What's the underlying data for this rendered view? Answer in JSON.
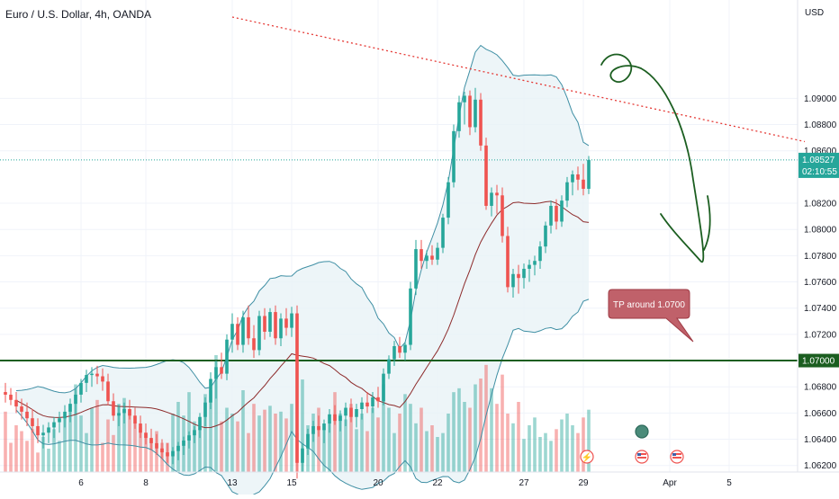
{
  "header": {
    "symbol_title": "Euro / U.S. Dollar, 4h, OANDA"
  },
  "price_axis": {
    "currency": "USD",
    "ticks": [
      "1.09000",
      "1.08800",
      "1.08600",
      "1.08200",
      "1.08000",
      "1.07800",
      "1.07600",
      "1.07400",
      "1.07200",
      "1.06800",
      "1.06600",
      "1.06400",
      "1.06200"
    ],
    "tick_values": [
      1.09,
      1.088,
      1.086,
      1.082,
      1.08,
      1.078,
      1.076,
      1.074,
      1.072,
      1.068,
      1.066,
      1.064,
      1.062
    ],
    "last_price_tag": {
      "price": "1.08527",
      "countdown": "02:10:55"
    },
    "tp_tag": "1.07000"
  },
  "time_axis": {
    "ticks": [
      {
        "label": "6",
        "bar": 14
      },
      {
        "label": "8",
        "bar": 26
      },
      {
        "label": "13",
        "bar": 42
      },
      {
        "label": "15",
        "bar": 53
      },
      {
        "label": "20",
        "bar": 69
      },
      {
        "label": "22",
        "bar": 80
      },
      {
        "label": "27",
        "bar": 96
      },
      {
        "label": "29",
        "bar": 107
      },
      {
        "label": "Apr",
        "bar": 123
      },
      {
        "label": "5",
        "bar": 134
      }
    ]
  },
  "annotations": {
    "tp_callout": "TP around 1.0700",
    "tp_level": 1.07,
    "resistance_line": {
      "from": {
        "bar": 42,
        "price": 1.0962
      },
      "to": {
        "bar": 148,
        "price": 1.0867
      }
    },
    "event_icons": [
      "flash-event-icon",
      "us-flag-icon",
      "world-event-icon",
      "us-flag-icon",
      "us-flag-icon"
    ]
  },
  "colors": {
    "up": "#26a69a",
    "down": "#ef5350",
    "hline": "#1b5e20",
    "bands": "#3f8fa4",
    "basis": "#8d2b2b",
    "resistance": "#e53935",
    "drawing": "#1b5e20",
    "callout": "#c0616a"
  },
  "chart_data": {
    "type": "candlestick",
    "title": "Euro / U.S. Dollar, 4h, OANDA",
    "y_unit": "USD",
    "ylim": [
      1.0615,
      1.0975
    ],
    "grid": true,
    "candles": [
      [
        1.0676,
        1.0683,
        1.0668,
        1.0674
      ],
      [
        1.0674,
        1.0679,
        1.0666,
        1.067
      ],
      [
        1.067,
        1.0676,
        1.066,
        1.0665
      ],
      [
        1.0665,
        1.0671,
        1.0655,
        1.0661
      ],
      [
        1.0661,
        1.0668,
        1.065,
        1.0656
      ],
      [
        1.0656,
        1.0663,
        1.0645,
        1.065
      ],
      [
        1.065,
        1.0656,
        1.0637,
        1.0643
      ],
      [
        1.0643,
        1.0651,
        1.0633,
        1.0645
      ],
      [
        1.0645,
        1.0653,
        1.0637,
        1.0649
      ],
      [
        1.0649,
        1.0657,
        1.0641,
        1.0653
      ],
      [
        1.0653,
        1.0661,
        1.0645,
        1.0656
      ],
      [
        1.0656,
        1.0666,
        1.0649,
        1.0661
      ],
      [
        1.0661,
        1.0671,
        1.0653,
        1.0667
      ],
      [
        1.0667,
        1.0678,
        1.0659,
        1.0674
      ],
      [
        1.0674,
        1.0686,
        1.0668,
        1.0683
      ],
      [
        1.0683,
        1.0693,
        1.0676,
        1.0689
      ],
      [
        1.0689,
        1.0695,
        1.068,
        1.069
      ],
      [
        1.069,
        1.0696,
        1.0682,
        1.0688
      ],
      [
        1.0688,
        1.0694,
        1.0677,
        1.0684
      ],
      [
        1.0684,
        1.069,
        1.0666,
        1.0669
      ],
      [
        1.0669,
        1.0675,
        1.0654,
        1.0658
      ],
      [
        1.0658,
        1.0666,
        1.065,
        1.066
      ],
      [
        1.066,
        1.0668,
        1.0652,
        1.0663
      ],
      [
        1.0663,
        1.067,
        1.0655,
        1.0658
      ],
      [
        1.0658,
        1.0664,
        1.0648,
        1.0652
      ],
      [
        1.0652,
        1.0658,
        1.0641,
        1.0645
      ],
      [
        1.0645,
        1.0652,
        1.0636,
        1.0641
      ],
      [
        1.0641,
        1.0648,
        1.0632,
        1.0637
      ],
      [
        1.0637,
        1.0644,
        1.0628,
        1.0633
      ],
      [
        1.0633,
        1.064,
        1.0625,
        1.063
      ],
      [
        1.063,
        1.0637,
        1.0622,
        1.0627
      ],
      [
        1.0627,
        1.0634,
        1.0621,
        1.0631
      ],
      [
        1.0631,
        1.0638,
        1.0624,
        1.0635
      ],
      [
        1.0635,
        1.0642,
        1.0628,
        1.0639
      ],
      [
        1.0639,
        1.0646,
        1.0633,
        1.0643
      ],
      [
        1.0643,
        1.065,
        1.0637,
        1.0647
      ],
      [
        1.0647,
        1.066,
        1.0641,
        1.0657
      ],
      [
        1.0657,
        1.0672,
        1.065,
        1.0668
      ],
      [
        1.0668,
        1.0691,
        1.0663,
        1.0686
      ],
      [
        1.0686,
        1.07,
        1.0671,
        1.0695
      ],
      [
        1.0695,
        1.0706,
        1.0686,
        1.069
      ],
      [
        1.069,
        1.072,
        1.0685,
        1.0716
      ],
      [
        1.0716,
        1.0736,
        1.0706,
        1.0728
      ],
      [
        1.0728,
        1.0733,
        1.0708,
        1.0712
      ],
      [
        1.0712,
        1.0738,
        1.0706,
        1.0733
      ],
      [
        1.0733,
        1.0742,
        1.0712,
        1.0717
      ],
      [
        1.0717,
        1.0727,
        1.0702,
        1.0708
      ],
      [
        1.0708,
        1.0738,
        1.0704,
        1.0734
      ],
      [
        1.0734,
        1.074,
        1.0716,
        1.0722
      ],
      [
        1.0722,
        1.074,
        1.0718,
        1.0737
      ],
      [
        1.0737,
        1.0742,
        1.0712,
        1.0717
      ],
      [
        1.0717,
        1.0736,
        1.0711,
        1.0732
      ],
      [
        1.0732,
        1.074,
        1.0719,
        1.0725
      ],
      [
        1.0725,
        1.0741,
        1.0718,
        1.0736
      ],
      [
        1.0736,
        1.0742,
        1.061,
        1.0622
      ],
      [
        1.0622,
        1.0637,
        1.0615,
        1.0633
      ],
      [
        1.0633,
        1.0648,
        1.0628,
        1.0644
      ],
      [
        1.0644,
        1.0654,
        1.0638,
        1.065
      ],
      [
        1.065,
        1.0658,
        1.0642,
        1.0647
      ],
      [
        1.0647,
        1.0655,
        1.0637,
        1.0652
      ],
      [
        1.0652,
        1.0663,
        1.0645,
        1.0659
      ],
      [
        1.0659,
        1.0666,
        1.0651,
        1.0654
      ],
      [
        1.0654,
        1.0662,
        1.0646,
        1.0658
      ],
      [
        1.0658,
        1.0668,
        1.065,
        1.0664
      ],
      [
        1.0664,
        1.0671,
        1.0653,
        1.0657
      ],
      [
        1.0657,
        1.0667,
        1.0649,
        1.0663
      ],
      [
        1.0663,
        1.0672,
        1.0655,
        1.0668
      ],
      [
        1.0668,
        1.0676,
        1.066,
        1.0665
      ],
      [
        1.0665,
        1.0676,
        1.066,
        1.0672
      ],
      [
        1.0672,
        1.068,
        1.0664,
        1.0669
      ],
      [
        1.0669,
        1.0694,
        1.0666,
        1.069
      ],
      [
        1.069,
        1.0704,
        1.0686,
        1.0701
      ],
      [
        1.0701,
        1.0715,
        1.0696,
        1.0711
      ],
      [
        1.0711,
        1.0718,
        1.0702,
        1.0706
      ],
      [
        1.0706,
        1.0714,
        1.07,
        1.0712
      ],
      [
        1.0712,
        1.076,
        1.0708,
        1.0755
      ],
      [
        1.0755,
        1.0792,
        1.075,
        1.0785
      ],
      [
        1.0785,
        1.0792,
        1.077,
        1.0776
      ],
      [
        1.0776,
        1.0784,
        1.077,
        1.078
      ],
      [
        1.078,
        1.0788,
        1.0773,
        1.0777
      ],
      [
        1.0777,
        1.079,
        1.0773,
        1.0786
      ],
      [
        1.0786,
        1.0812,
        1.0782,
        1.0809
      ],
      [
        1.0809,
        1.084,
        1.0804,
        1.0836
      ],
      [
        1.0836,
        1.088,
        1.0832,
        1.0875
      ],
      [
        1.0875,
        1.0902,
        1.087,
        1.0897
      ],
      [
        1.0897,
        1.0905,
        1.088,
        1.0902
      ],
      [
        1.0902,
        1.0906,
        1.0872,
        1.0878
      ],
      [
        1.0878,
        1.0908,
        1.0874,
        1.0899
      ],
      [
        1.0899,
        1.0904,
        1.086,
        1.0864
      ],
      [
        1.0864,
        1.087,
        1.0815,
        1.0818
      ],
      [
        1.0818,
        1.0832,
        1.081,
        1.0828
      ],
      [
        1.0828,
        1.0834,
        1.0812,
        1.0826
      ],
      [
        1.0826,
        1.0832,
        1.079,
        1.0795
      ],
      [
        1.0795,
        1.0802,
        1.0752,
        1.0756
      ],
      [
        1.0756,
        1.077,
        1.0748,
        1.0766
      ],
      [
        1.0766,
        1.0773,
        1.0751,
        1.0763
      ],
      [
        1.0763,
        1.0774,
        1.0755,
        1.077
      ],
      [
        1.077,
        1.0777,
        1.076,
        1.0773
      ],
      [
        1.0773,
        1.078,
        1.0765,
        1.0776
      ],
      [
        1.0776,
        1.0791,
        1.077,
        1.0787
      ],
      [
        1.0787,
        1.0806,
        1.0782,
        1.0803
      ],
      [
        1.0803,
        1.0822,
        1.0797,
        1.0818
      ],
      [
        1.0818,
        1.0823,
        1.08,
        1.0806
      ],
      [
        1.0806,
        1.0826,
        1.0802,
        1.0822
      ],
      [
        1.0822,
        1.084,
        1.0817,
        1.0836
      ],
      [
        1.0836,
        1.0845,
        1.0826,
        1.0842
      ],
      [
        1.0842,
        1.0848,
        1.083,
        1.0838
      ],
      [
        1.0838,
        1.085,
        1.0826,
        1.0831
      ],
      [
        1.0831,
        1.0856,
        1.0827,
        1.0853
      ]
    ],
    "volume": [
      62,
      30,
      48,
      42,
      32,
      44,
      20,
      36,
      24,
      44,
      32,
      56,
      70,
      90,
      58,
      40,
      66,
      74,
      30,
      54,
      38,
      70,
      76,
      64,
      50,
      46,
      40,
      34,
      42,
      30,
      30,
      60,
      72,
      58,
      82,
      52,
      44,
      80,
      84,
      120,
      52,
      66,
      60,
      52,
      84,
      40,
      70,
      58,
      64,
      68,
      60,
      62,
      55,
      70,
      40,
      95,
      48,
      60,
      66,
      44,
      50,
      82,
      60,
      54,
      70,
      44,
      60,
      42,
      66,
      56,
      90,
      66,
      40,
      60,
      80,
      70,
      50,
      66,
      42,
      48,
      36,
      40,
      60,
      82,
      86,
      72,
      66,
      90,
      96,
      110,
      86,
      70,
      100,
      60,
      50,
      72,
      34,
      48,
      56,
      36,
      40,
      32,
      44,
      54,
      60,
      48,
      40,
      56,
      64
    ]
  }
}
